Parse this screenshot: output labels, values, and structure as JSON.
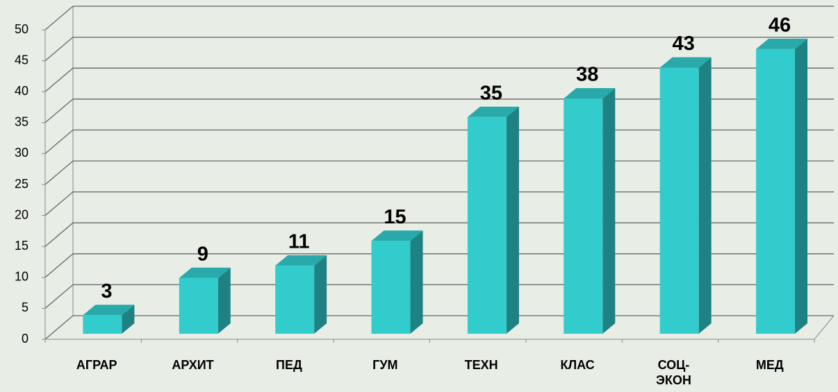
{
  "chart_data": {
    "type": "bar3d",
    "categories": [
      "АГРАР",
      "АРХИТ",
      "ПЕД",
      "ГУМ",
      "ТЕХН",
      "КЛАС",
      "СОЦ-ЭКОН",
      "МЕД"
    ],
    "values": [
      3,
      9,
      11,
      15,
      35,
      38,
      43,
      46
    ],
    "color": "#33cccc",
    "ylim": [
      0,
      50
    ],
    "yticks": [
      0,
      5,
      10,
      15,
      20,
      25,
      30,
      35,
      40,
      45,
      50
    ],
    "grid": true
  }
}
